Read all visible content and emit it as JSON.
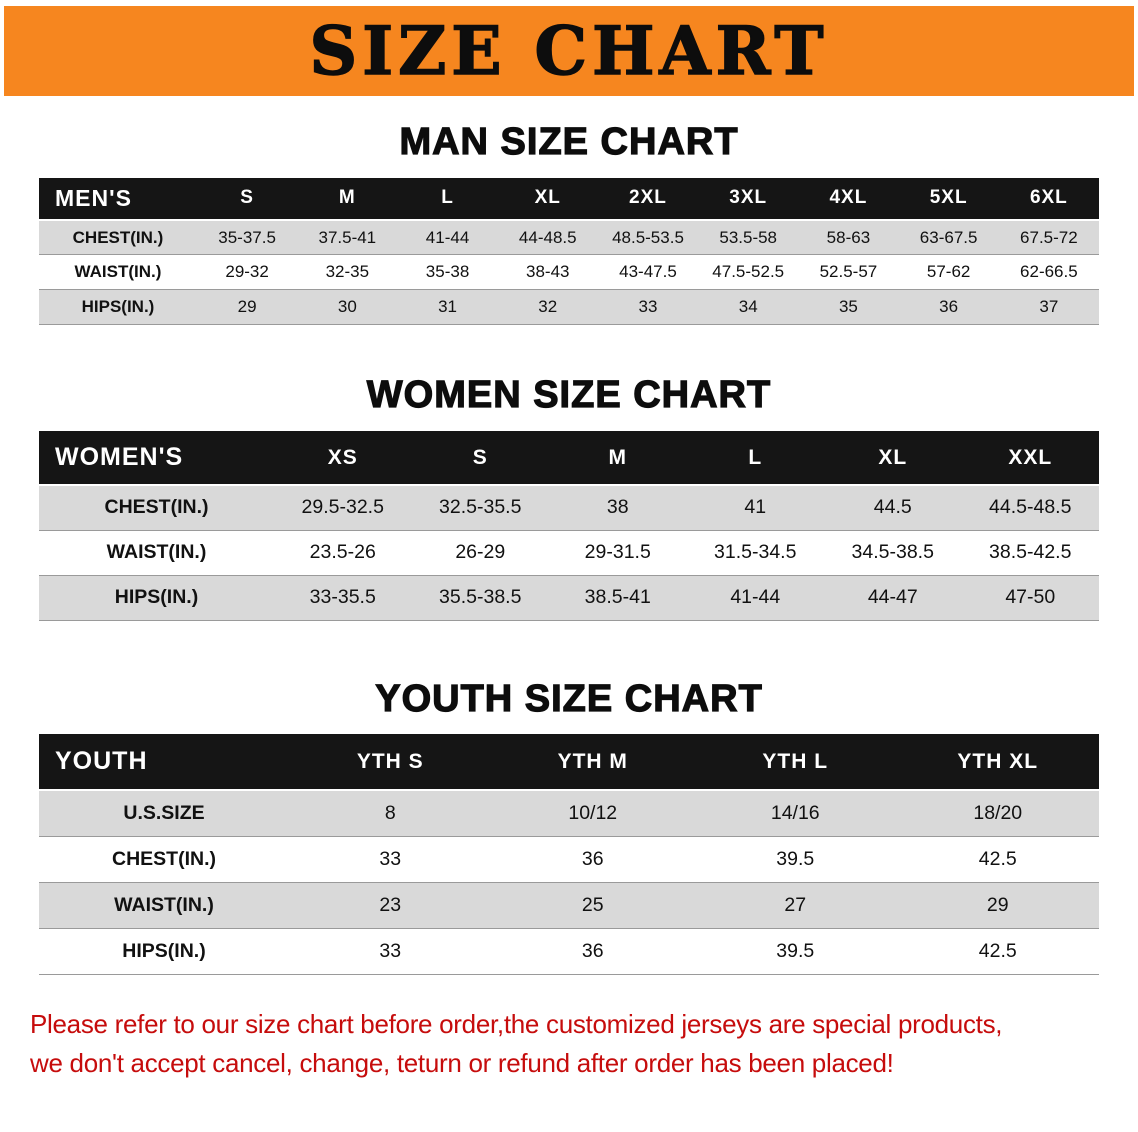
{
  "banner": {
    "title": "SIZE CHART"
  },
  "colors": {
    "banner_bg": "#f6861f",
    "header_bg": "#151515",
    "shade_row": "#d9d9d9",
    "footer_text": "#c60c0c"
  },
  "tables": [
    {
      "heading": "MAN SIZE CHART",
      "header": [
        "MEN'S",
        "S",
        "M",
        "L",
        "XL",
        "2XL",
        "3XL",
        "4XL",
        "5XL",
        "6XL"
      ],
      "rows": [
        [
          "CHEST(IN.)",
          "35-37.5",
          "37.5-41",
          "41-44",
          "44-48.5",
          "48.5-53.5",
          "53.5-58",
          "58-63",
          "63-67.5",
          "67.5-72"
        ],
        [
          "WAIST(IN.)",
          "29-32",
          "32-35",
          "35-38",
          "38-43",
          "43-47.5",
          "47.5-52.5",
          "52.5-57",
          "57-62",
          "62-66.5"
        ],
        [
          "HIPS(IN.)",
          "29",
          "30",
          "31",
          "32",
          "33",
          "34",
          "35",
          "36",
          "37"
        ]
      ]
    },
    {
      "heading": "WOMEN SIZE CHART",
      "header": [
        "WOMEN'S",
        "XS",
        "S",
        "M",
        "L",
        "XL",
        "XXL"
      ],
      "rows": [
        [
          "CHEST(IN.)",
          "29.5-32.5",
          "32.5-35.5",
          "38",
          "41",
          "44.5",
          "44.5-48.5"
        ],
        [
          "WAIST(IN.)",
          "23.5-26",
          "26-29",
          "29-31.5",
          "31.5-34.5",
          "34.5-38.5",
          "38.5-42.5"
        ],
        [
          "HIPS(IN.)",
          "33-35.5",
          "35.5-38.5",
          "38.5-41",
          "41-44",
          "44-47",
          "47-50"
        ]
      ]
    },
    {
      "heading": "YOUTH SIZE CHART",
      "header": [
        "YOUTH",
        "YTH S",
        "YTH M",
        "YTH L",
        "YTH XL"
      ],
      "rows": [
        [
          "U.S.SIZE",
          "8",
          "10/12",
          "14/16",
          "18/20"
        ],
        [
          "CHEST(IN.)",
          "33",
          "36",
          "39.5",
          "42.5"
        ],
        [
          "WAIST(IN.)",
          "23",
          "25",
          "27",
          "29"
        ],
        [
          "HIPS(IN.)",
          "33",
          "36",
          "39.5",
          "42.5"
        ]
      ]
    }
  ],
  "footer": {
    "lines": [
      "Please refer to our size chart before order,the customized jerseys are special products,",
      "we don't accept cancel, change, teturn or refund after order has been placed!"
    ]
  }
}
